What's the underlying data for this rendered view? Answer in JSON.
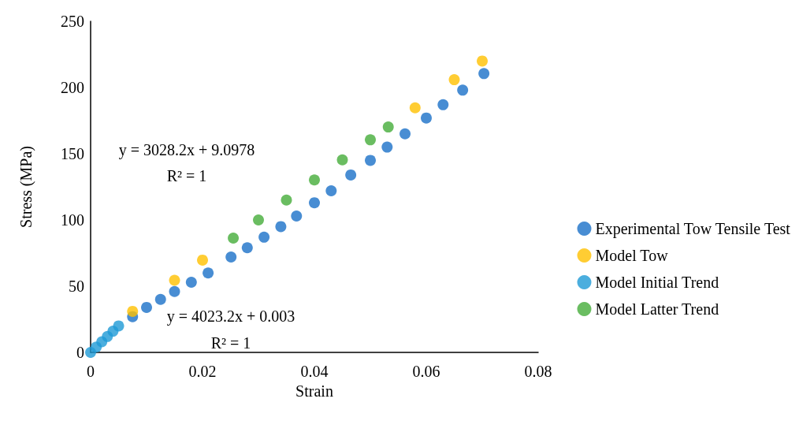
{
  "chart_data": {
    "type": "scatter",
    "xlabel": "Strain",
    "ylabel": "Stress (MPa)",
    "xlim": [
      0,
      0.08
    ],
    "xticks": [
      0,
      0.02,
      0.04,
      0.06,
      0.08
    ],
    "ylim": [
      0,
      250
    ],
    "yticks": [
      0,
      50,
      100,
      150,
      200,
      250
    ],
    "grid": false,
    "legend": "right",
    "marker": "circle",
    "series": [
      {
        "name": "Experimental Tow Tensile Test",
        "color": "#1a70c8",
        "x": [
          0.0075,
          0.01,
          0.0125,
          0.015,
          0.018,
          0.021,
          0.0251,
          0.028,
          0.031,
          0.034,
          0.0368,
          0.04,
          0.043,
          0.0465,
          0.05,
          0.053,
          0.0562,
          0.06,
          0.063,
          0.0665,
          0.0703
        ],
        "values": [
          27,
          34,
          40,
          46,
          53,
          60,
          72,
          79,
          87,
          95,
          103,
          113,
          122,
          134,
          145,
          155,
          165,
          177,
          187,
          198,
          210.5
        ]
      },
      {
        "name": "Model Tow",
        "color": "#ffc000",
        "x": [
          0.0075,
          0.015,
          0.02,
          0.058,
          0.065,
          0.07
        ],
        "values": [
          31,
          54.5,
          69.7,
          184.7,
          205.9,
          220
        ]
      },
      {
        "name": "Model Initial Trend",
        "color": "#1e9ad6",
        "x": [
          0,
          0.001,
          0.002,
          0.003,
          0.004,
          0.005
        ],
        "values": [
          0,
          4,
          8,
          12,
          16,
          20
        ]
      },
      {
        "name": "Model Latter Trend",
        "color": "#45ad3a",
        "x": [
          0.0255,
          0.03,
          0.035,
          0.04,
          0.045,
          0.05,
          0.0532
        ],
        "values": [
          86.3,
          100,
          115,
          130.2,
          145.4,
          160.5,
          170.2
        ]
      }
    ],
    "annotations": [
      "y = 3028.2x + 9.0978",
      "R² = 1",
      "y = 4023.2x + 0.003",
      "R² = 1"
    ]
  }
}
